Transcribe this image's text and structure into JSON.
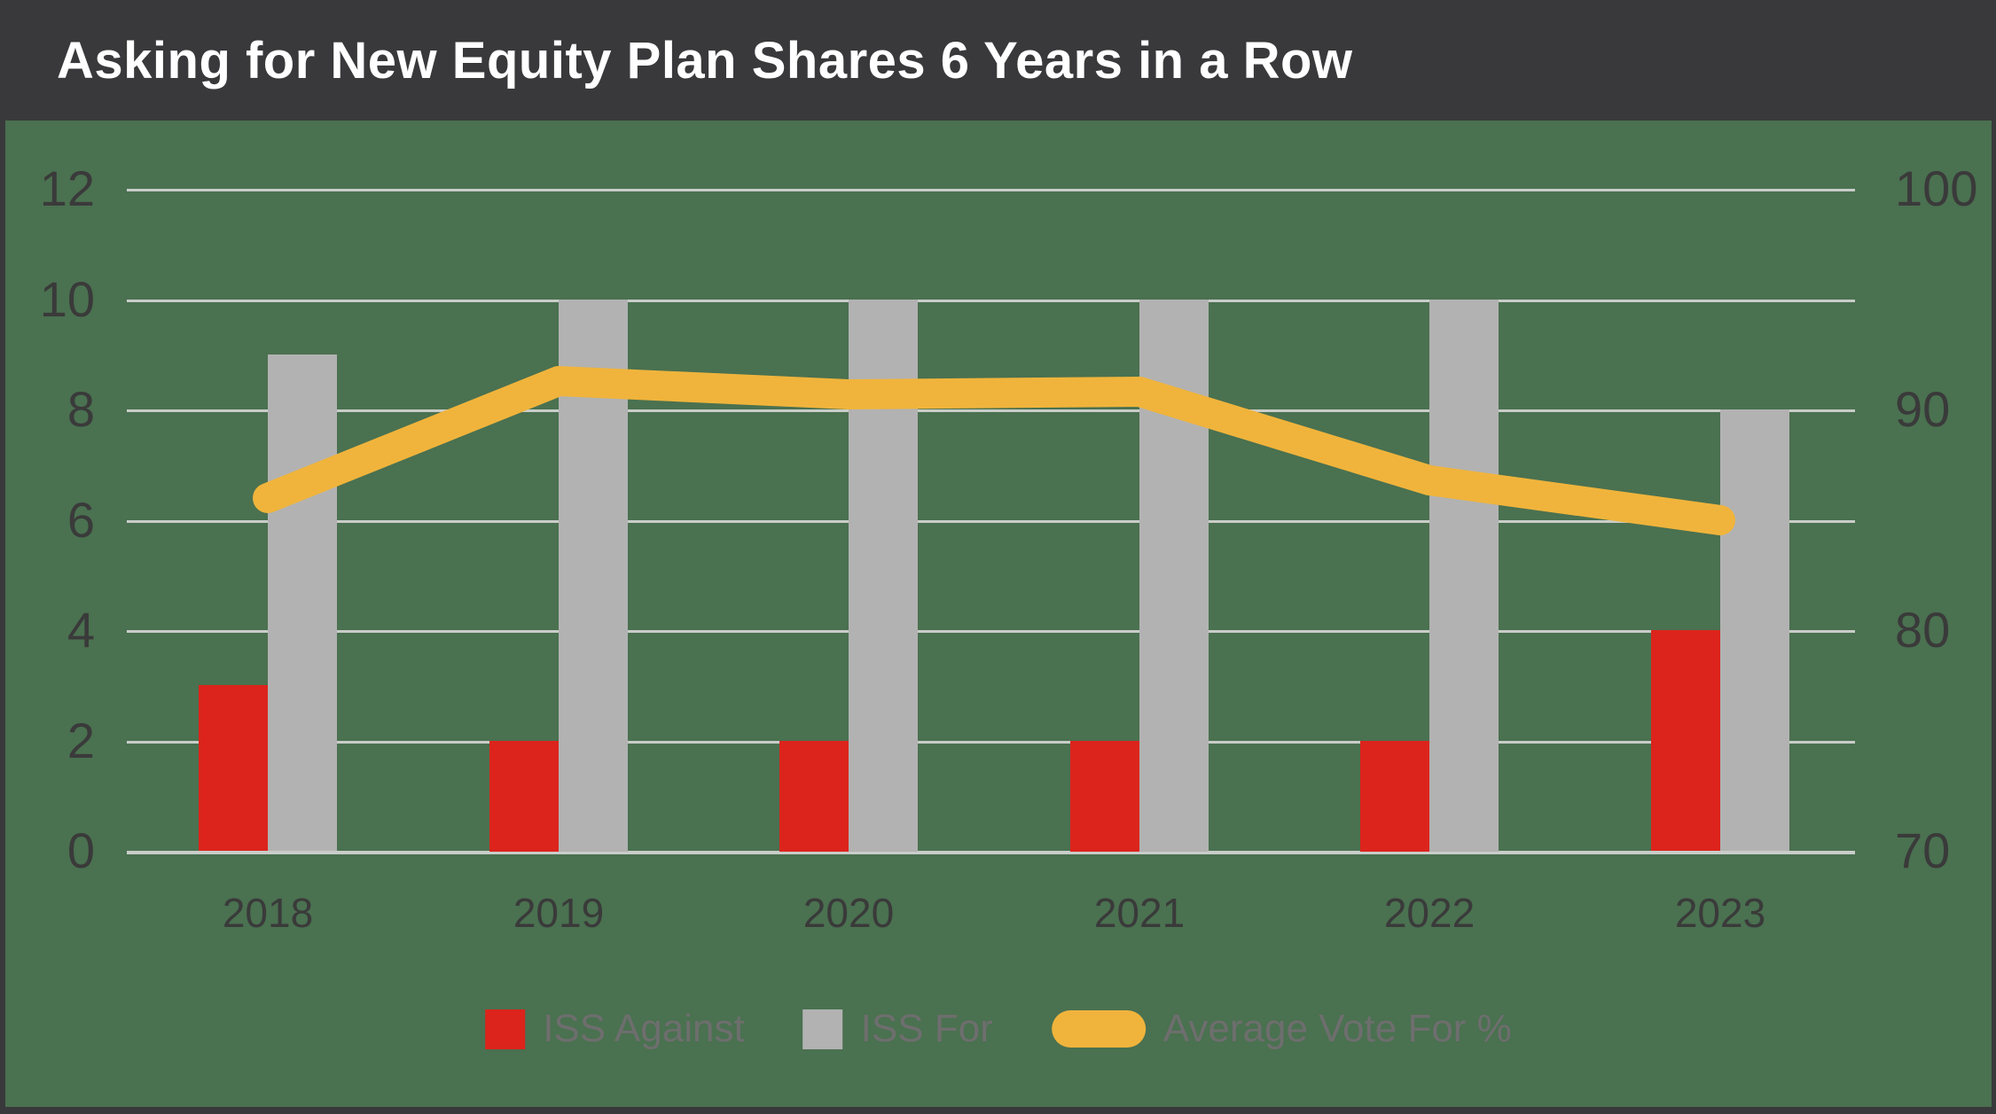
{
  "header": {
    "title": "Asking for New Equity Plan Shares 6 Years in a Row"
  },
  "chart_data": {
    "type": "bar+line combo",
    "title": "Asking for New Equity Plan Shares 6 Years in a Row",
    "categories": [
      "2018",
      "2019",
      "2020",
      "2021",
      "2022",
      "2023"
    ],
    "series": [
      {
        "name": "ISS Against",
        "type": "bar",
        "axis": "left",
        "color": "#dc241c",
        "values": [
          3,
          2,
          2,
          2,
          2,
          4
        ]
      },
      {
        "name": "ISS For",
        "type": "bar",
        "axis": "left",
        "color": "#b2b2b2",
        "values": [
          9,
          10,
          10,
          10,
          10,
          8
        ]
      },
      {
        "name": "Average Vote For %",
        "type": "line",
        "axis": "right",
        "color": "#f0b43c",
        "values": [
          86,
          91.3,
          90.7,
          90.8,
          86.8,
          85
        ]
      }
    ],
    "left_axis": {
      "ticks": [
        0,
        2,
        4,
        6,
        8,
        10,
        12
      ],
      "range": [
        0,
        12
      ]
    },
    "right_axis": {
      "ticks": [
        70,
        80,
        90,
        100
      ],
      "range": [
        70,
        100
      ]
    },
    "grid": true,
    "legend_position": "bottom",
    "plot_background": "#4a7150",
    "gridline_color": "#c9cdc9"
  },
  "legend": {
    "items": [
      {
        "label": "ISS Against",
        "swatch": "square",
        "color": "#dc241c"
      },
      {
        "label": "ISS For",
        "swatch": "square",
        "color": "#b2b2b2"
      },
      {
        "label": "Average Vote For %",
        "swatch": "pill",
        "color": "#f0b43c"
      }
    ]
  },
  "colors": {
    "frame": "#39393b",
    "title_text": "#ffffff",
    "axis_text": "#3a3a3a",
    "legend_text": "#6e6e6e"
  }
}
